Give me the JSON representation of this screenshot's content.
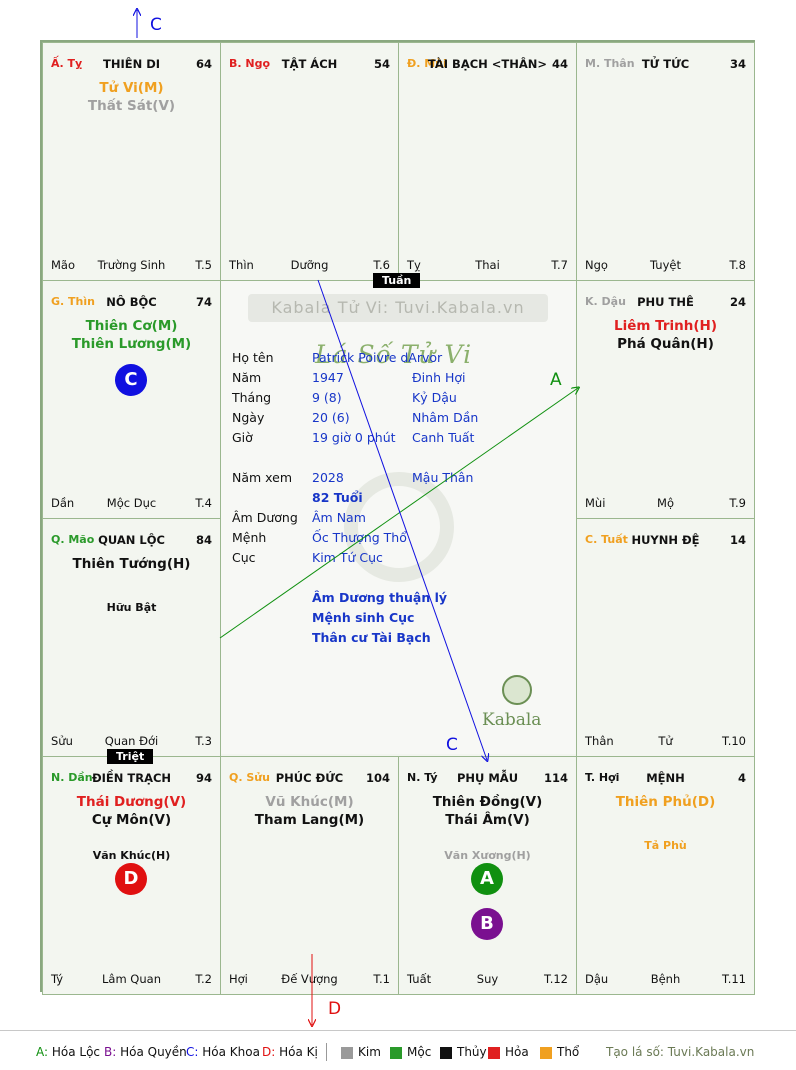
{
  "chart_data": {
    "type": "table",
    "cells": [
      {
        "can": "Ấ. Tỵ",
        "can_color": "#e02020",
        "name": "THIÊN DI",
        "age": "64",
        "stars": [
          {
            "t": "Tử Vi(M)",
            "c": "#f0a020"
          },
          {
            "t": "Thất Sát(V)",
            "c": "#a0a0a0"
          }
        ],
        "minor": [],
        "branch": "Mão",
        "stage": "Trường Sinh",
        "num": "T.5"
      },
      {
        "can": "B. Ngọ",
        "can_color": "#e02020",
        "name": "TẬT ÁCH",
        "age": "54",
        "stars": [],
        "minor": [],
        "branch": "Thìn",
        "stage": "Dưỡng",
        "num": "T.6"
      },
      {
        "can": "Đ. Mùi",
        "can_color": "#f0a020",
        "name": "TÀI BẠCH <THÂN>",
        "age": "44",
        "stars": [],
        "minor": [],
        "branch": "Tỵ",
        "stage": "Thai",
        "num": "T.7"
      },
      {
        "can": "M. Thân",
        "can_color": "#a0a0a0",
        "name": "TỬ TỨC",
        "age": "34",
        "stars": [],
        "minor": [],
        "branch": "Ngọ",
        "stage": "Tuyệt",
        "num": "T.8"
      },
      {
        "can": "G. Thìn",
        "can_color": "#f0a020",
        "name": "NÔ BỘC",
        "age": "74",
        "stars": [
          {
            "t": "Thiên Cơ(M)",
            "c": "#2a9a2a"
          },
          {
            "t": "Thiên Lương(M)",
            "c": "#2a9a2a"
          }
        ],
        "minor": [],
        "branch": "Dần",
        "stage": "Mộc Dục",
        "num": "T.4"
      },
      {
        "can": "K. Dậu",
        "can_color": "#a0a0a0",
        "name": "PHU THÊ",
        "age": "24",
        "stars": [
          {
            "t": "Liêm Trinh(H)",
            "c": "#e02020"
          },
          {
            "t": "Phá Quân(H)",
            "c": "#111111"
          }
        ],
        "minor": [],
        "branch": "Mùi",
        "stage": "Mộ",
        "num": "T.9"
      },
      {
        "can": "Q. Mão",
        "can_color": "#2a9a2a",
        "name": "QUAN LỘC",
        "age": "84",
        "stars": [
          {
            "t": "Thiên Tướng(H)",
            "c": "#111111"
          }
        ],
        "minor": [
          {
            "t": "Hữu Bật",
            "c": "#111111"
          }
        ],
        "branch": "Sửu",
        "stage": "Quan Đới",
        "num": "T.3"
      },
      {
        "can": "C. Tuất",
        "can_color": "#f0a020",
        "name": "HUYNH ĐỆ",
        "age": "14",
        "stars": [],
        "minor": [],
        "branch": "Thân",
        "stage": "Tử",
        "num": "T.10"
      },
      {
        "can": "N. Dần",
        "can_color": "#2a9a2a",
        "name": "ĐIỀN TRẠCH",
        "age": "94",
        "stars": [
          {
            "t": "Thái Dương(V)",
            "c": "#e02020"
          },
          {
            "t": "Cự Môn(V)",
            "c": "#111111"
          }
        ],
        "minor": [
          {
            "t": "Văn Khúc(H)",
            "c": "#111111"
          }
        ],
        "branch": "Tý",
        "stage": "Lâm Quan",
        "num": "T.2"
      },
      {
        "can": "Q. Sửu",
        "can_color": "#f0a020",
        "name": "PHÚC ĐỨC",
        "age": "104",
        "stars": [
          {
            "t": "Vũ Khúc(M)",
            "c": "#a0a0a0"
          },
          {
            "t": "Tham Lang(M)",
            "c": "#111111"
          }
        ],
        "minor": [],
        "branch": "Hợi",
        "stage": "Đế Vượng",
        "num": "T.1"
      },
      {
        "can": "N. Tý",
        "can_color": "#111111",
        "name": "PHỤ MẪU",
        "age": "114",
        "stars": [
          {
            "t": "Thiên Đồng(V)",
            "c": "#111111"
          },
          {
            "t": "Thái Âm(V)",
            "c": "#111111"
          }
        ],
        "minor": [
          {
            "t": "Văn Xương(H)",
            "c": "#a0a0a0"
          }
        ],
        "branch": "Tuất",
        "stage": "Suy",
        "num": "T.12"
      },
      {
        "can": "T. Hợi",
        "can_color": "#111111",
        "name": "MỆNH",
        "age": "4",
        "stars": [
          {
            "t": "Thiên Phủ(D)",
            "c": "#f0a020"
          }
        ],
        "minor": [
          {
            "t": "Tả Phù",
            "c": "#f0a020"
          }
        ],
        "branch": "Dậu",
        "stage": "Bệnh",
        "num": "T.11"
      }
    ],
    "markers": [
      {
        "letter": "C",
        "color": "#1010e0",
        "cell": 4
      },
      {
        "letter": "D",
        "color": "#e01010",
        "cell": 8
      },
      {
        "letter": "A",
        "color": "#109010",
        "cell": 10
      },
      {
        "letter": "B",
        "color": "#7a1090",
        "cell": 10
      }
    ],
    "tags": [
      "Tuần",
      "Triệt"
    ],
    "arrows": [
      {
        "letter": "C",
        "color": "#1010e0"
      },
      {
        "letter": "A",
        "color": "#109010"
      },
      {
        "letter": "C",
        "color": "#1010e0"
      },
      {
        "letter": "D",
        "color": "#e01010"
      }
    ],
    "center": {
      "watermark": "Kabala Tử Vi: Tuvi.Kabala.vn",
      "logo": "Lá Số Tử Vi",
      "brand": "Kabala",
      "rows": [
        {
          "label": "Họ tên",
          "v1": "Patrick Poivre dArvor",
          "v2": ""
        },
        {
          "label": "Năm",
          "v1": "1947",
          "v2": "Đinh Hợi"
        },
        {
          "label": "Tháng",
          "v1": "9  (8)",
          "v2": "Kỷ Dậu"
        },
        {
          "label": "Ngày",
          "v1": "20  (6)",
          "v2": "Nhâm Dần"
        },
        {
          "label": "Giờ",
          "v1": "19 giờ 0 phút",
          "v2": "Canh Tuất"
        },
        {
          "label": "Năm xem",
          "v1": "2028",
          "v2": "Mậu Thân"
        },
        {
          "label": "",
          "v1": "82 Tuổi",
          "v2": ""
        },
        {
          "label": "Âm Dương",
          "v1": "Âm Nam",
          "v2": ""
        },
        {
          "label": "Mệnh",
          "v1": "Ốc Thượng Thổ",
          "v2": ""
        },
        {
          "label": "Cục",
          "v1": "Kim Tứ Cục",
          "v2": ""
        }
      ],
      "notes": [
        "Âm Dương thuận lý",
        "Mệnh sinh Cục",
        "Thân cư Tài Bạch"
      ]
    },
    "legend": {
      "items": [
        {
          "t": "A: Hóa Lộc",
          "c": "#109010"
        },
        {
          "t": "B: Hóa Quyền",
          "c": "#7a1090"
        },
        {
          "t": "C: Hóa Khoa",
          "c": "#1010e0"
        },
        {
          "t": "D: Hóa Kị",
          "c": "#e01010"
        }
      ],
      "elements": [
        {
          "t": "Kim",
          "c": "#9a9a9a"
        },
        {
          "t": "Mộc",
          "c": "#2a9a2a"
        },
        {
          "t": "Thủy",
          "c": "#111111"
        },
        {
          "t": "Hỏa",
          "c": "#e02020"
        },
        {
          "t": "Thổ",
          "c": "#f0a020"
        }
      ],
      "site": "Tạo lá số: Tuvi.Kabala.vn"
    }
  }
}
